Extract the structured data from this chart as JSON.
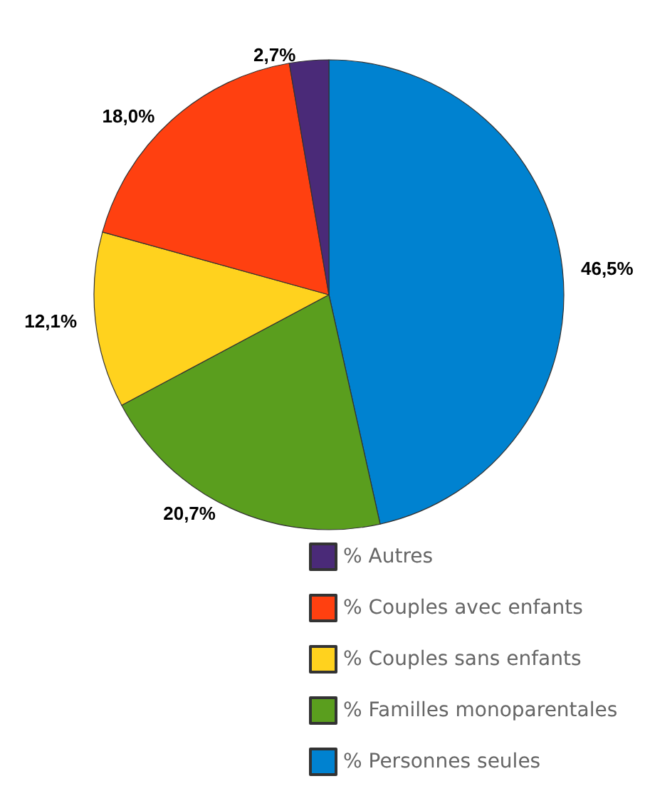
{
  "chart_data": {
    "type": "pie",
    "categories": [
      "% Personnes seules",
      "% Familles monoparentales",
      "% Couples sans enfants",
      "% Couples avec enfants",
      "% Autres"
    ],
    "values": [
      46.5,
      20.7,
      12.1,
      18.0,
      2.7
    ],
    "value_labels": [
      "46,5%",
      "20,7%",
      "12,1%",
      "18,0%",
      "2,7%"
    ],
    "colors": [
      "#0082d0",
      "#5a9e1e",
      "#ffd21e",
      "#ff4010",
      "#4a2a78"
    ],
    "legend": "bottom right"
  }
}
